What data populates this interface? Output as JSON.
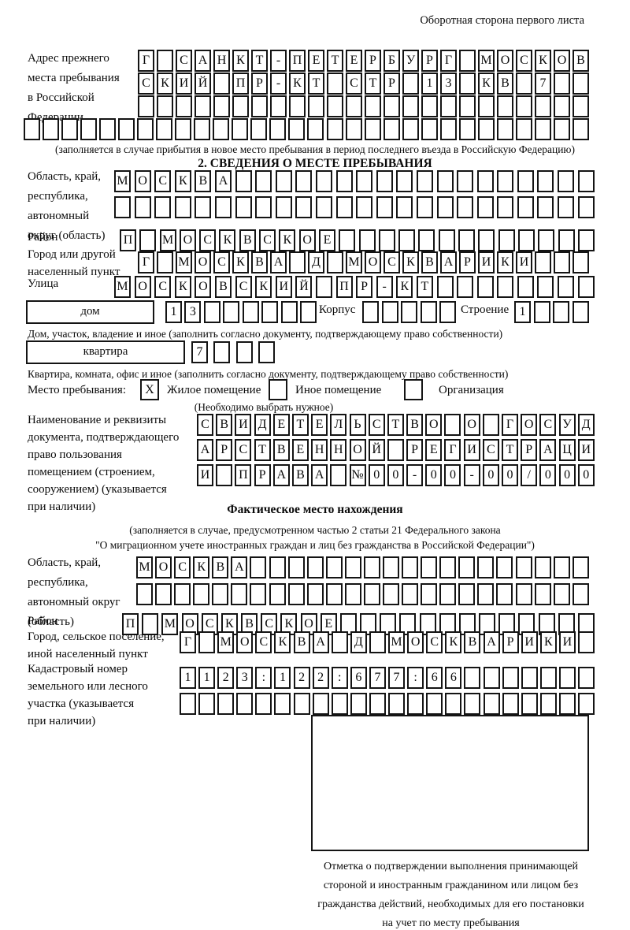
{
  "header": {
    "note": "Оборотная сторона первого листа"
  },
  "prev_address": {
    "label": [
      "Адрес прежнего",
      "места пребывания",
      "в Российской",
      "Федерации"
    ],
    "rows": [
      {
        "text": "Г САНКТ-ПЕТЕРБУРГ МОСКОВ",
        "len": 24
      },
      {
        "text": "СКИЙ ПР-КТ СТР 13 КВ 7",
        "len": 24
      },
      {
        "text": "",
        "len": 24
      },
      {
        "text": "",
        "len": 30
      }
    ],
    "note": "(заполняется в случае прибытия в новое место пребывания в период последнего въезда в Российскую Федерацию)"
  },
  "section2": {
    "title": "2. СВЕДЕНИЯ О МЕСТЕ ПРЕБЫВАНИЯ",
    "region": {
      "label": [
        "Область, край,",
        "республика,",
        "автономный",
        "округ (область)"
      ],
      "rows": [
        {
          "text": "МОСКВА",
          "len": 24
        },
        {
          "text": "",
          "len": 24
        }
      ]
    },
    "district": {
      "label": "Район",
      "row": {
        "text": "П МОСКВСКОЕ",
        "len": 24
      }
    },
    "city": {
      "label": [
        "Город или другой",
        "населенный пункт"
      ],
      "row": {
        "text": "Г МОСКВА Д МОСКВАРИКИ",
        "len": 24
      }
    },
    "street": {
      "label": "Улица",
      "row": {
        "text": "МОСКОВСКИЙ ПР-КТ",
        "len": 24
      }
    },
    "house": {
      "box_label": "дом",
      "row": {
        "text": "13",
        "len": 8
      },
      "korpus_label": "Корпус",
      "korpus_row": {
        "text": "",
        "len": 5
      },
      "stroenie_label": "Строение",
      "stroenie_row": {
        "text": "1",
        "len": 4
      },
      "note": "Дом, участок, владение и иное (заполнить согласно документу, подтверждающему право собственности)"
    },
    "apartment": {
      "box_label": "квартира",
      "row": {
        "text": "7",
        "len": 4
      },
      "note": "Квартира, комната, офис и иное (заполнить согласно документу, подтверждающему право собственности)"
    },
    "stay_type": {
      "label": "Место пребывания:",
      "options": [
        {
          "label": "Жилое помещение",
          "mark": "X"
        },
        {
          "label": "Иное помещение",
          "mark": ""
        },
        {
          "label": "Организация",
          "mark": ""
        }
      ],
      "note": "(Необходимо выбрать нужное)"
    },
    "document": {
      "label": [
        "Наименование и реквизиты",
        "документа, подтверждающего",
        "право пользования",
        "помещением (строением,",
        "сооружением) (указывается",
        "при наличии)"
      ],
      "rows": [
        {
          "text": "СВИДЕТЕЛЬСТВО О ГОСУД",
          "len": 21
        },
        {
          "text": "АРСТВЕННОЙ РЕГИСТРАЦИ",
          "len": 21
        },
        {
          "text": "И ПРАВА №00-00-00/000",
          "len": 21
        }
      ]
    }
  },
  "actual_location": {
    "title": "Фактическое место нахождения",
    "note": [
      "(заполняется в случае, предусмотренном частью 2 статьи 21 Федерального закона",
      "\"О миграционном учете иностранных граждан и лиц без гражданства в Российской Федерации\")"
    ],
    "region": {
      "label": [
        "Область, край,",
        "республика,",
        "автономный округ",
        "(область)"
      ],
      "rows": [
        {
          "text": "МОСКВА",
          "len": 24
        },
        {
          "text": "",
          "len": 24
        }
      ]
    },
    "district": {
      "label": "Район",
      "row": {
        "text": "П МОСКВСКОЕ",
        "len": 24
      }
    },
    "city": {
      "label": [
        "Город, сельское поселение,",
        "иной населенный пункт"
      ],
      "row": {
        "text": "Г МОСКВА Д МОСКВАРИКИ",
        "len": 22
      }
    },
    "cadastral": {
      "label": [
        "Кадастровый номер",
        "земельного или лесного",
        "участка (указывается",
        "при наличии)"
      ],
      "rows": [
        {
          "text": "1123:122:677:66",
          "len": 22
        },
        {
          "text": "",
          "len": 22
        }
      ]
    },
    "stamp_note": [
      "Отметка о подтверждении выполнения принимающей",
      "стороной и иностранным гражданином или лицом без",
      "гражданства действий, необходимых для его постановки",
      "на учет по месту пребывания"
    ]
  }
}
